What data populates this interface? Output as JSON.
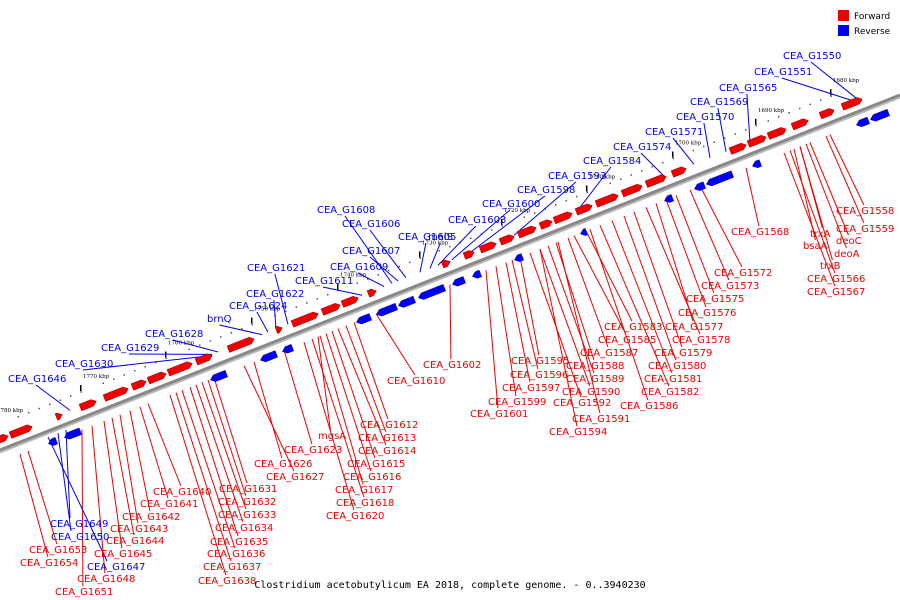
{
  "caption": "Clostridium acetobutylicum EA 2018, complete genome. - 0..3940230",
  "colors": {
    "forward": "#ee0000",
    "reverse": "#0000ee",
    "axis": "#888888"
  },
  "legend": [
    {
      "label": "Forward",
      "color": "#ee0000"
    },
    {
      "label": "Reverse",
      "color": "#0000ee"
    }
  ],
  "ticks": [
    "1680 kbp",
    "1690 kbp",
    "1700 kbp",
    "1710 kbp",
    "1720 kbp",
    "1730 kbp",
    "1740 kbp",
    "1750 kbp",
    "1760 kbp",
    "1770 kbp",
    "1780 kbp"
  ],
  "forward_genes": [
    "CEA_G1558",
    "CEA_G1559",
    "trxA",
    "deoC",
    "bsaA",
    "deoA",
    "trxB",
    "CEA_G1566",
    "CEA_G1567",
    "CEA_G1568",
    "CEA_G1572",
    "CEA_G1573",
    "CEA_G1575",
    "CEA_G1576",
    "CEA_G1577",
    "CEA_G1578",
    "CEA_G1579",
    "CEA_G1580",
    "CEA_G1581",
    "CEA_G1582",
    "CEA_G1583",
    "CEA_G1585",
    "CEA_G1586",
    "CEA_G1587",
    "CEA_G1588",
    "CEA_G1589",
    "CEA_G1590",
    "CEA_G1591",
    "CEA_G1592",
    "CEA_G1594",
    "CEA_G1595",
    "CEA_G1596",
    "CEA_G1597",
    "CEA_G1599",
    "CEA_G1601",
    "CEA_G1602",
    "CEA_G1610",
    "CEA_G1612",
    "CEA_G1613",
    "CEA_G1614",
    "CEA_G1615",
    "mgsA",
    "CEA_G1616",
    "CEA_G1617",
    "CEA_G1618",
    "CEA_G1620",
    "CEA_G1623",
    "CEA_G1626",
    "CEA_G1627",
    "CEA_G1631",
    "CEA_G1632",
    "CEA_G1633",
    "CEA_G1634",
    "CEA_G1635",
    "CEA_G1636",
    "CEA_G1637",
    "CEA_G1638",
    "CEA_G1640",
    "CEA_G1641",
    "CEA_G1642",
    "CEA_G1643",
    "CEA_G1644",
    "CEA_G1645",
    "CEA_G1648",
    "CEA_G1651",
    "CEA_G1653",
    "CEA_G1654"
  ],
  "reverse_genes": [
    "CEA_G1550",
    "CEA_G1551",
    "CEA_G1565",
    "CEA_G1569",
    "CEA_G1570",
    "CEA_G1571",
    "CEA_G1574",
    "CEA_G1584",
    "CEA_G1593",
    "CEA_G1598",
    "CEA_G1600",
    "CEA_G1603",
    "CEA_G1605",
    "malS",
    "CEA_G1606",
    "CEA_G1607",
    "CEA_G1608",
    "CEA_G1609",
    "CEA_G1611",
    "CEA_G1621",
    "CEA_G1622",
    "CEA_G1624",
    "brnQ",
    "CEA_G1628",
    "CEA_G1629",
    "CEA_G1630",
    "CEA_G1646",
    "CEA_G1647",
    "CEA_G1649",
    "CEA_G1650"
  ]
}
